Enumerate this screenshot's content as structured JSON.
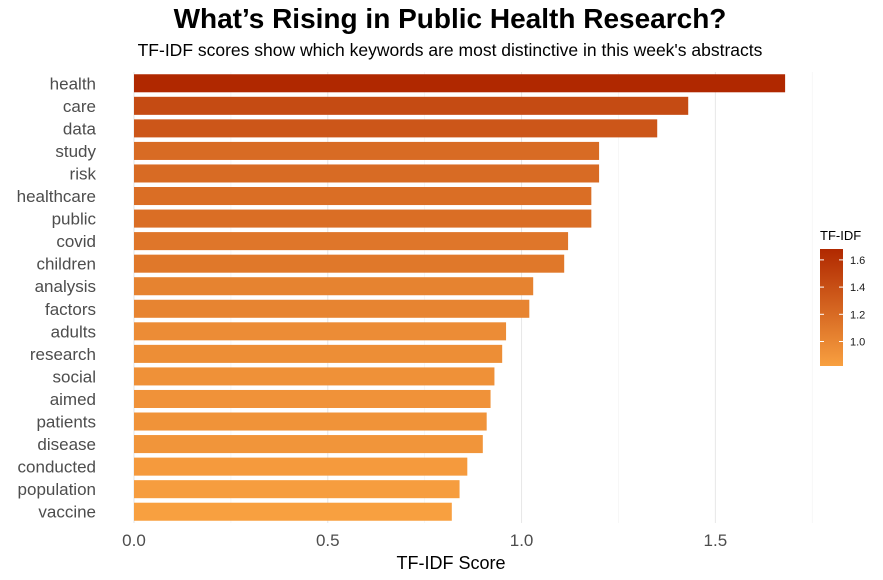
{
  "chart_data": {
    "type": "bar",
    "orientation": "horizontal",
    "title": "What’s Rising in Public Health Research?",
    "subtitle": "TF-IDF scores show which keywords are most distinctive in this week's abstracts",
    "xlabel": "TF-IDF Score",
    "ylabel": "",
    "xlim": [
      0,
      1.85
    ],
    "xticks": [
      "0.0",
      "0.5",
      "1.0",
      "1.5"
    ],
    "grid": true,
    "categories": [
      "health",
      "care",
      "data",
      "study",
      "risk",
      "healthcare",
      "public",
      "covid",
      "children",
      "analysis",
      "factors",
      "adults",
      "research",
      "social",
      "aimed",
      "patients",
      "disease",
      "conducted",
      "population",
      "vaccine"
    ],
    "values": [
      1.68,
      1.43,
      1.35,
      1.2,
      1.2,
      1.18,
      1.18,
      1.12,
      1.11,
      1.03,
      1.02,
      0.96,
      0.95,
      0.93,
      0.92,
      0.91,
      0.9,
      0.86,
      0.84,
      0.82
    ],
    "legend": {
      "title": "TF-IDF",
      "position": "right",
      "ticks": [
        "1.6",
        "1.4",
        "1.2",
        "1.0"
      ],
      "range": [
        0.82,
        1.68
      ]
    },
    "colors": {
      "low": "#f8a040",
      "high": "#b02800"
    }
  }
}
